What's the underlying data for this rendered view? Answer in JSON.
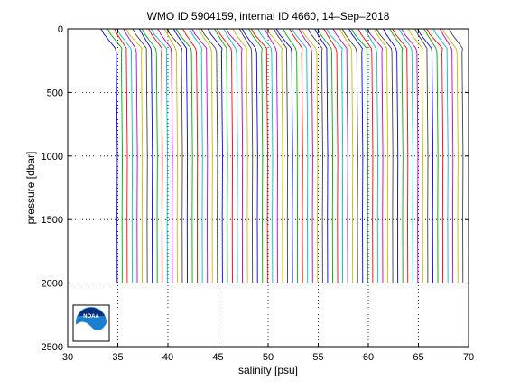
{
  "chart_data": {
    "type": "line",
    "title": "WMO ID 5904159, internal ID 4660, 14–Sep–2018",
    "xlabel": "salinity [psu]",
    "ylabel": "pressure [dbar]",
    "xlim": [
      30,
      70
    ],
    "ylim": [
      0,
      2500
    ],
    "y_reversed": true,
    "grid": "dotted",
    "x_ticks": [
      30,
      35,
      40,
      45,
      50,
      55,
      60,
      65,
      70
    ],
    "y_ticks": [
      0,
      500,
      1000,
      1500,
      2000,
      2500
    ],
    "x_tick_labels": [
      "30",
      "35",
      "40",
      "45",
      "50",
      "55",
      "60",
      "65",
      "70"
    ],
    "y_tick_labels": [
      "0",
      "500",
      "1000",
      "1500",
      "2000",
      "2500"
    ],
    "profiles": {
      "count": 70,
      "first_deep_salinity": 34.9,
      "salinity_step": 0.5,
      "surface_offset": -1.4,
      "mixed_layer_pressure": 40,
      "halocline_pressure": 190,
      "max_pressure": 2000
    },
    "series_colors": [
      "#0000ff",
      "#00aa00",
      "#ff0000",
      "#00bfbf",
      "#bf00bf",
      "#bfbf00",
      "#404040"
    ],
    "logo": {
      "name": "noaa-logo",
      "text": "NOAA"
    }
  }
}
